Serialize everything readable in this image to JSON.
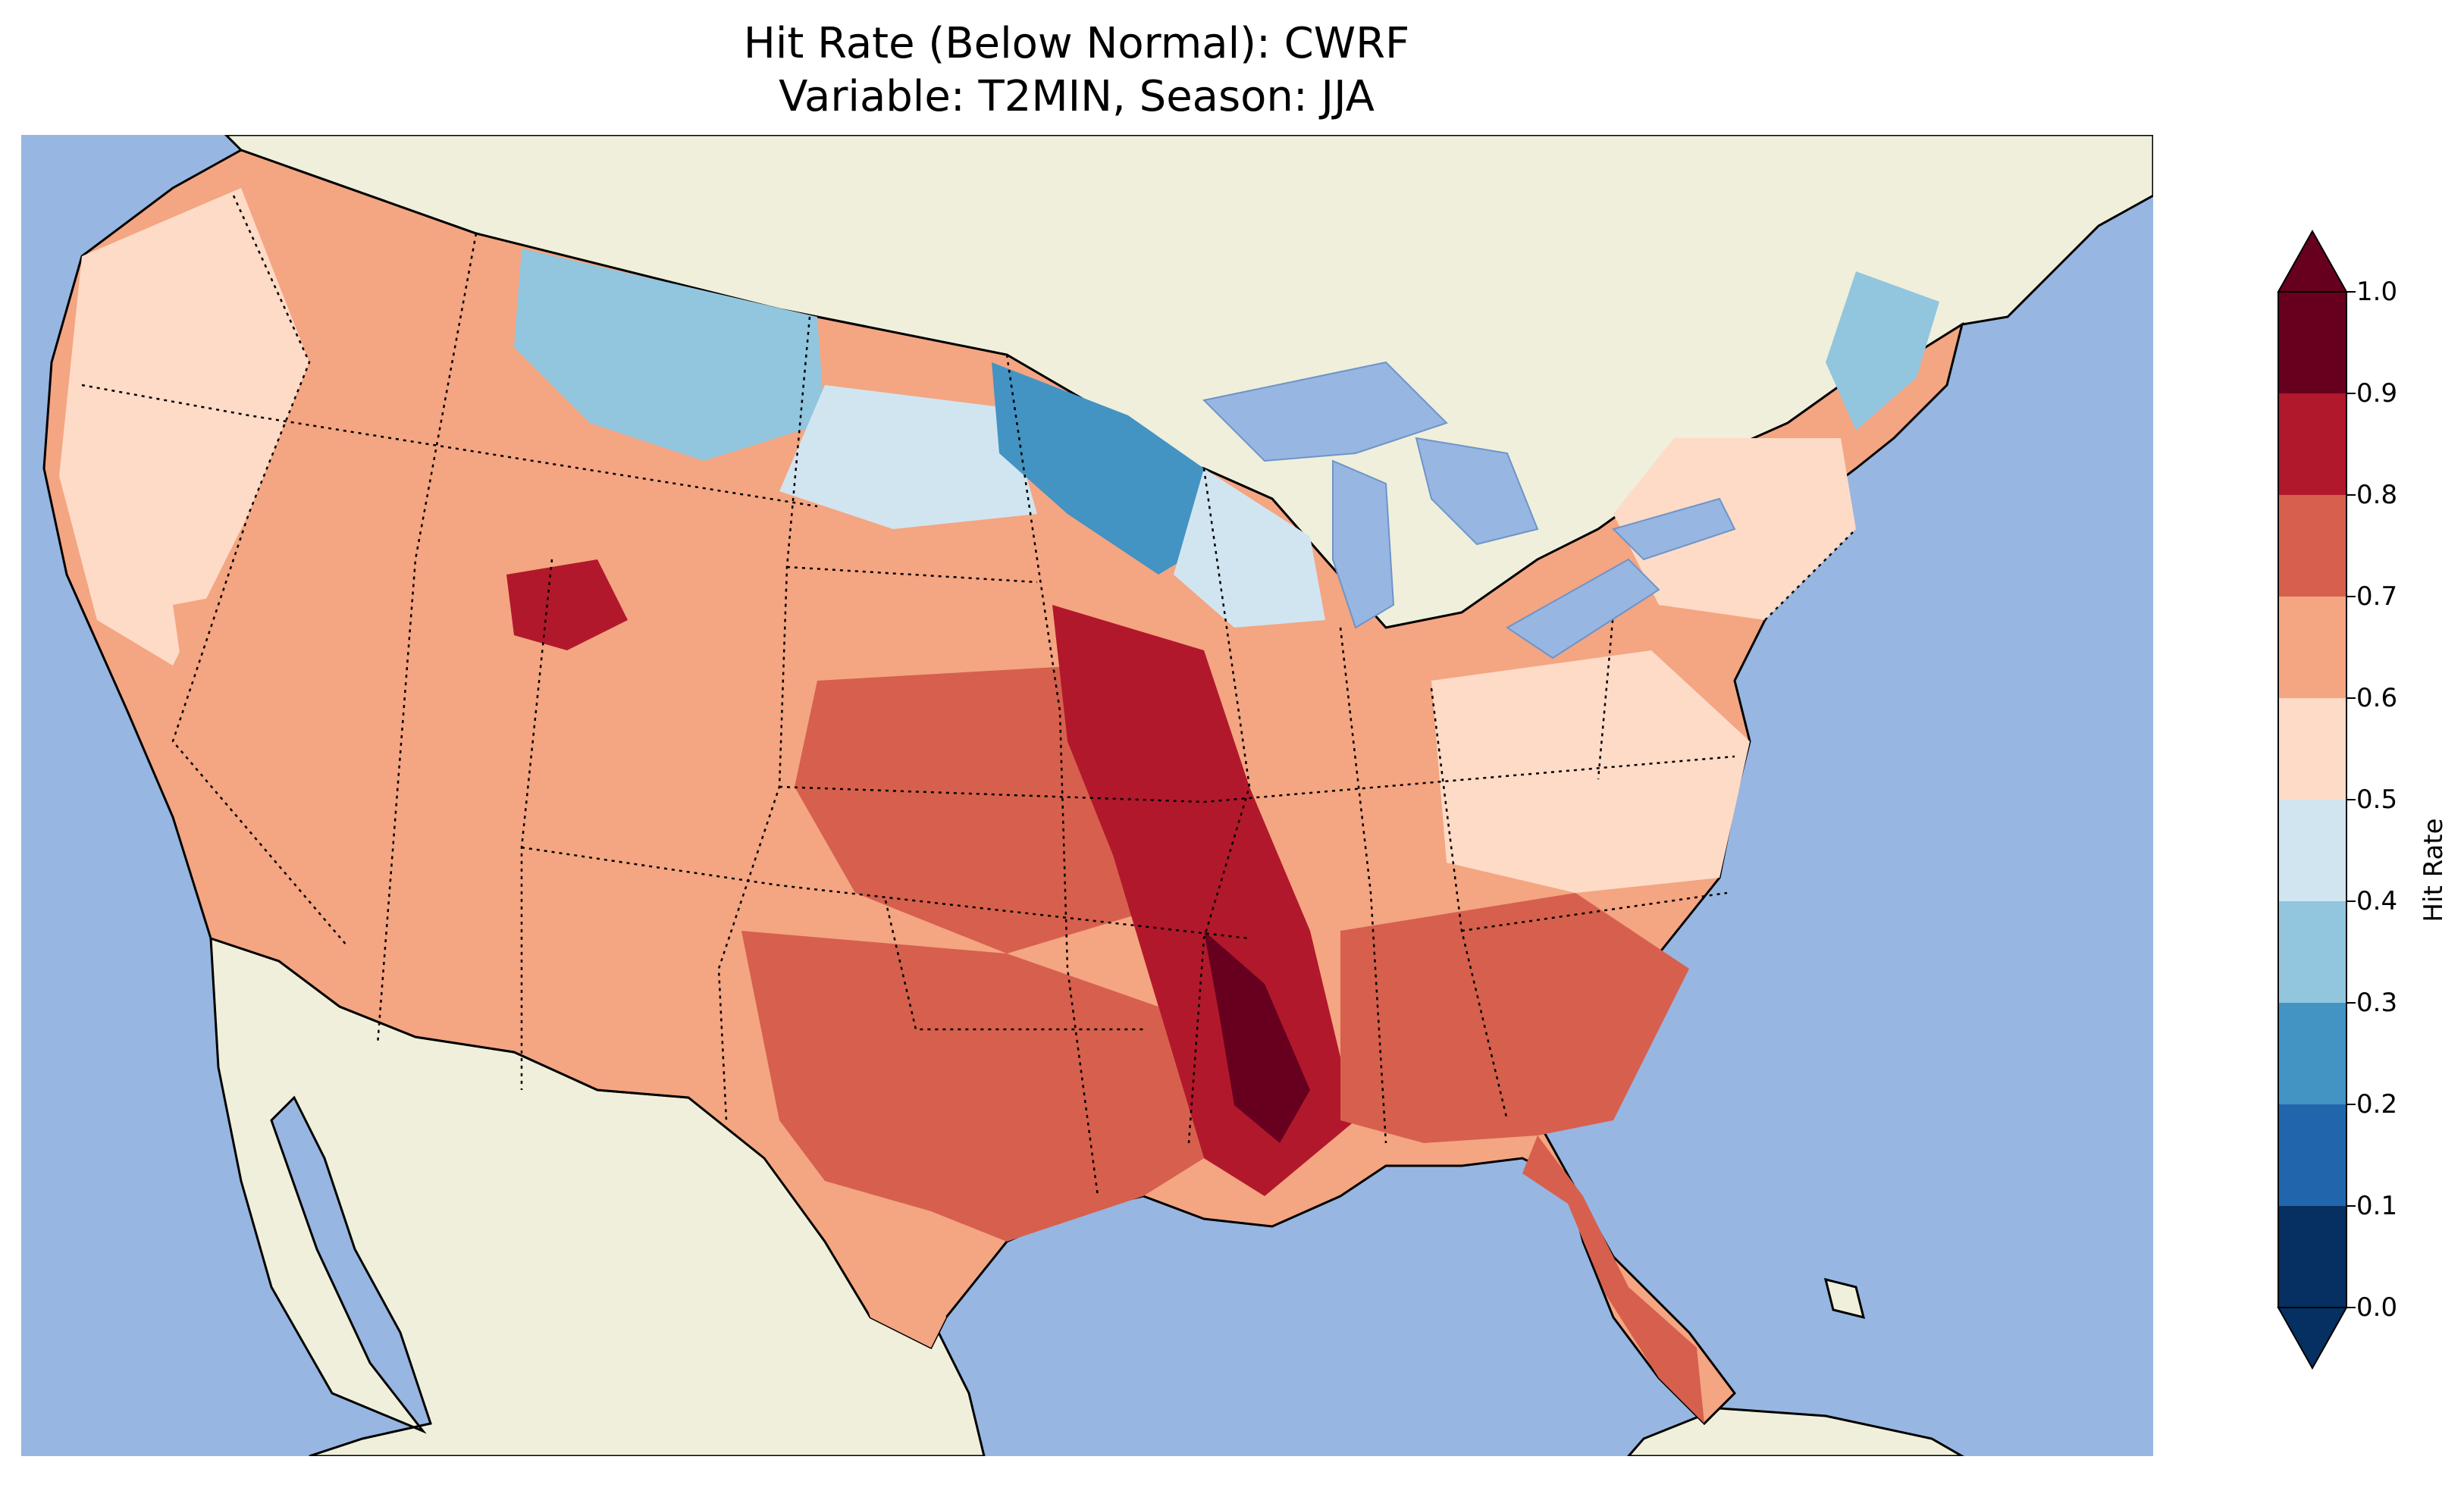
{
  "title_line1": "Hit Rate (Below Normal): CWRF",
  "title_line2": "Variable: T2MIN, Season: JJA",
  "colorbar": {
    "label": "Hit Rate",
    "ticks": [
      "0.0",
      "0.1",
      "0.2",
      "0.3",
      "0.4",
      "0.5",
      "0.6",
      "0.7",
      "0.8",
      "0.9",
      "1.0"
    ],
    "colors": [
      "#053061",
      "#2166ac",
      "#4393c3",
      "#92c5de",
      "#d1e5f0",
      "#fddbc7",
      "#f4a582",
      "#d6604d",
      "#b2182b",
      "#67001f"
    ],
    "extend": "both"
  },
  "map": {
    "ocean_color": "#97b6e1",
    "land_color": "#efefdb",
    "regions": [
      {
        "name": "pacific-northwest",
        "value": 0.55
      },
      {
        "name": "montana-north",
        "value": 0.35
      },
      {
        "name": "minnesota",
        "value": 0.25
      },
      {
        "name": "great-basin",
        "value": 0.65
      },
      {
        "name": "central-plains",
        "value": 0.75
      },
      {
        "name": "mississippi-valley",
        "value": 0.9
      },
      {
        "name": "southeast",
        "value": 0.75
      },
      {
        "name": "northeast",
        "value": 0.55
      },
      {
        "name": "maine",
        "value": 0.35
      },
      {
        "name": "florida",
        "value": 0.75
      },
      {
        "name": "south-texas",
        "value": 0.6
      }
    ]
  }
}
